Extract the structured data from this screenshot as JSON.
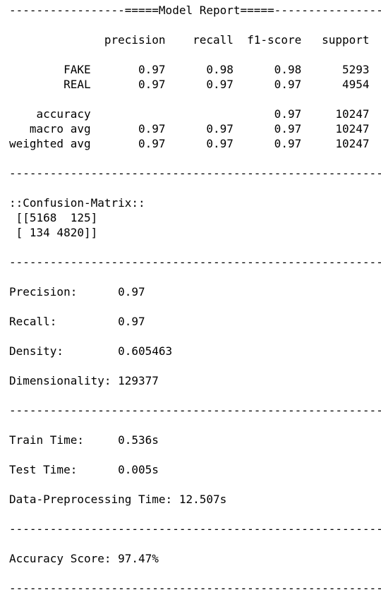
{
  "output": {
    "lines": [
      "-----------------=====Model Report=====-----------------",
      "",
      "              precision    recall  f1-score   support",
      "",
      "        FAKE       0.97      0.98      0.98      5293",
      "        REAL       0.97      0.97      0.97      4954",
      "",
      "    accuracy                           0.97     10247",
      "   macro avg       0.97      0.97      0.97     10247",
      "weighted avg       0.97      0.97      0.97     10247",
      "",
      "--------------------------------------------------------",
      "",
      "::Confusion-Matrix::",
      " [[5168  125]",
      " [ 134 4820]]",
      "",
      "--------------------------------------------------------",
      "",
      "Precision:      0.97",
      "",
      "Recall:         0.97",
      "",
      "Density:        0.605463",
      "",
      "Dimensionality: 129377",
      "",
      "--------------------------------------------------------",
      "",
      "Train Time:     0.536s",
      "",
      "Test Time:      0.005s",
      "",
      "Data-Preprocessing Time: 12.507s",
      "",
      "--------------------------------------------------------",
      "",
      "Accuracy Score: 97.47%",
      "",
      "--------------------------------------------------------"
    ]
  }
}
